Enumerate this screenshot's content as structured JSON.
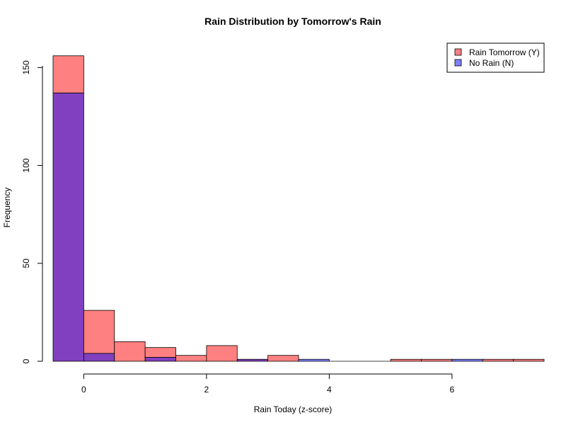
{
  "chart_data": {
    "type": "bar",
    "title": "Rain Distribution by Tomorrow's Rain",
    "xlabel": "Rain Today (z-score)",
    "ylabel": "Frequency",
    "xlim": [
      -0.5,
      7.5
    ],
    "ylim": [
      0,
      157
    ],
    "x_ticks": [
      0,
      2,
      4,
      6
    ],
    "y_ticks": [
      0,
      50,
      100,
      150
    ],
    "bin_edges": [
      -0.5,
      0,
      0.5,
      1,
      1.5,
      2,
      2.5,
      3,
      3.5,
      4,
      4.5,
      5,
      5.5,
      6,
      6.5,
      7,
      7.5
    ],
    "grid": false,
    "legend_position": "top-right",
    "series": [
      {
        "name": "Rain Tomorrow (Y)",
        "color": "#FF8080",
        "values": [
          156,
          26,
          10,
          7,
          3,
          8,
          1,
          3,
          0,
          0,
          0,
          1,
          1,
          0,
          1,
          1
        ]
      },
      {
        "name": "No Rain (N)",
        "color": "#8080FF",
        "values": [
          137,
          4,
          0,
          2,
          0,
          0,
          1,
          0,
          1,
          0,
          0,
          0,
          0,
          1,
          0,
          0
        ]
      }
    ],
    "overlap_color": "#8040C0"
  }
}
